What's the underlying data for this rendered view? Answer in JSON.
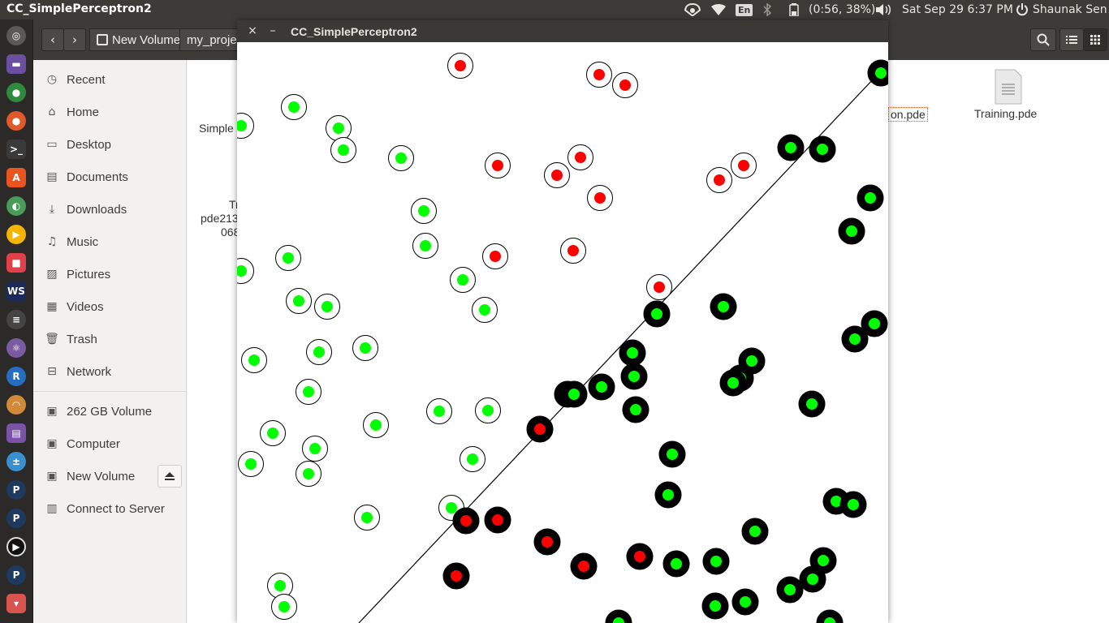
{
  "top_panel": {
    "window_title": "CC_SimplePerceptron2",
    "lang": "En",
    "battery": "(0:56, 38%)",
    "datetime": "Sat Sep 29  6:37 PM",
    "user": "Shaunak Sen"
  },
  "file_manager": {
    "path": [
      "New Volume",
      "my_proje"
    ],
    "sidebar": {
      "places": [
        {
          "label": "Recent",
          "icon": "clock-icon"
        },
        {
          "label": "Home",
          "icon": "home-icon"
        },
        {
          "label": "Desktop",
          "icon": "desktop-icon"
        },
        {
          "label": "Documents",
          "icon": "documents-icon"
        },
        {
          "label": "Downloads",
          "icon": "downloads-icon"
        },
        {
          "label": "Music",
          "icon": "music-icon"
        },
        {
          "label": "Pictures",
          "icon": "pictures-icon"
        },
        {
          "label": "Videos",
          "icon": "videos-icon"
        },
        {
          "label": "Trash",
          "icon": "trash-icon"
        },
        {
          "label": "Network",
          "icon": "network-icon"
        }
      ],
      "devices": [
        {
          "label": "262 GB Volume",
          "icon": "drive-icon"
        },
        {
          "label": "Computer",
          "icon": "drive-icon"
        },
        {
          "label": "New Volume",
          "icon": "drive-icon"
        },
        {
          "label": "Connect to Server",
          "icon": "server-icon"
        }
      ]
    },
    "files": {
      "left_partial_1": "Simple",
      "left_partial_2a": "Tr",
      "left_partial_2b": "pde213",
      "left_partial_2c": "068",
      "right_partial": "on.pde",
      "training": "Training.pde"
    }
  },
  "sketch_window": {
    "title": "CC_SimplePerceptron2",
    "close_glyph": "×",
    "minimize_glyph": "–"
  },
  "colors": {
    "correct_fill": "#00ff00",
    "incorrect_fill": "#ff0000",
    "class_above": "#ffffff",
    "class_below": "#000000"
  },
  "chart_data": {
    "type": "scatter",
    "points_above": [
      {
        "c": "red"
      },
      {
        "c": "red"
      },
      {
        "c": "red"
      },
      {
        "c": "green"
      },
      {
        "c": "green"
      },
      {
        "c": "green"
      },
      {
        "c": "green"
      },
      {
        "c": "green"
      },
      {
        "c": "red"
      },
      {
        "c": "red"
      },
      {
        "c": "red"
      },
      {
        "c": "red"
      },
      {
        "c": "red"
      },
      {
        "c": "red"
      },
      {
        "c": "green"
      },
      {
        "c": "green"
      },
      {
        "c": "green"
      },
      {
        "c": "red"
      },
      {
        "c": "red"
      },
      {
        "c": "green"
      },
      {
        "c": "green"
      },
      {
        "c": "green"
      },
      {
        "c": "green"
      },
      {
        "c": "green"
      },
      {
        "c": "red"
      },
      {
        "c": "green"
      },
      {
        "c": "green"
      },
      {
        "c": "green"
      },
      {
        "c": "green"
      },
      {
        "c": "green"
      },
      {
        "c": "green"
      },
      {
        "c": "green"
      },
      {
        "c": "green"
      },
      {
        "c": "green"
      },
      {
        "c": "green"
      },
      {
        "c": "green"
      },
      {
        "c": "green"
      },
      {
        "c": "green"
      },
      {
        "c": "green"
      },
      {
        "c": "green"
      },
      {
        "c": "green"
      }
    ],
    "points_below": [
      {
        "c": "green"
      },
      {
        "c": "green"
      },
      {
        "c": "green"
      },
      {
        "c": "green"
      },
      {
        "c": "green"
      },
      {
        "c": "green"
      },
      {
        "c": "green"
      },
      {
        "c": "green"
      },
      {
        "c": "green"
      },
      {
        "c": "green"
      },
      {
        "c": "green"
      },
      {
        "c": "green"
      },
      {
        "c": "green"
      },
      {
        "c": "green"
      },
      {
        "c": "green"
      },
      {
        "c": "green"
      },
      {
        "c": "green"
      },
      {
        "c": "green"
      },
      {
        "c": "green"
      },
      {
        "c": "green"
      },
      {
        "c": "red"
      },
      {
        "c": "green"
      },
      {
        "c": "green"
      },
      {
        "c": "green"
      },
      {
        "c": "green"
      },
      {
        "c": "red"
      },
      {
        "c": "red"
      },
      {
        "c": "red"
      },
      {
        "c": "red"
      },
      {
        "c": "red"
      },
      {
        "c": "red"
      },
      {
        "c": "green"
      },
      {
        "c": "green"
      },
      {
        "c": "green"
      },
      {
        "c": "green"
      },
      {
        "c": "green"
      },
      {
        "c": "green"
      },
      {
        "c": "green"
      },
      {
        "c": "green"
      },
      {
        "c": "green"
      }
    ]
  }
}
